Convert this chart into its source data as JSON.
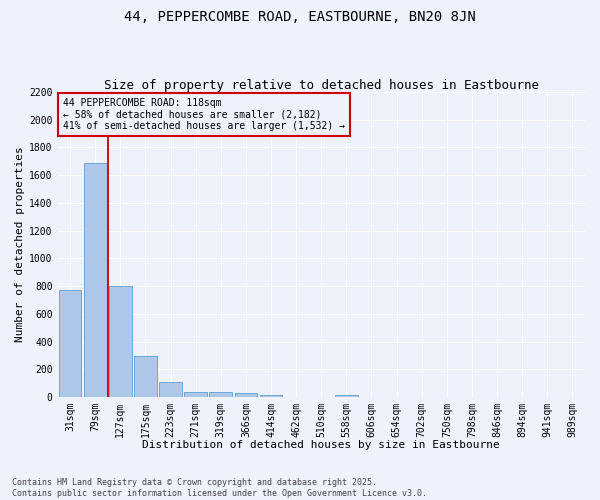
{
  "title": "44, PEPPERCOMBE ROAD, EASTBOURNE, BN20 8JN",
  "subtitle": "Size of property relative to detached houses in Eastbourne",
  "xlabel": "Distribution of detached houses by size in Eastbourne",
  "ylabel": "Number of detached properties",
  "categories": [
    "31sqm",
    "79sqm",
    "127sqm",
    "175sqm",
    "223sqm",
    "271sqm",
    "319sqm",
    "366sqm",
    "414sqm",
    "462sqm",
    "510sqm",
    "558sqm",
    "606sqm",
    "654sqm",
    "702sqm",
    "750sqm",
    "798sqm",
    "846sqm",
    "894sqm",
    "941sqm",
    "989sqm"
  ],
  "values": [
    770,
    1690,
    800,
    300,
    110,
    40,
    35,
    30,
    18,
    0,
    0,
    18,
    0,
    0,
    0,
    0,
    0,
    0,
    0,
    0,
    0
  ],
  "bar_color": "#aec6e8",
  "bar_edge_color": "#5a9fd4",
  "background_color": "#eef2fb",
  "grid_color": "#ffffff",
  "vline_x_index": 1.5,
  "vline_color": "#cc0000",
  "annotation_text": "44 PEPPERCOMBE ROAD: 118sqm\n← 58% of detached houses are smaller (2,182)\n41% of semi-detached houses are larger (1,532) →",
  "annotation_box_color": "#cc0000",
  "ylim": [
    0,
    2200
  ],
  "yticks": [
    0,
    200,
    400,
    600,
    800,
    1000,
    1200,
    1400,
    1600,
    1800,
    2000,
    2200
  ],
  "footer": "Contains HM Land Registry data © Crown copyright and database right 2025.\nContains public sector information licensed under the Open Government Licence v3.0.",
  "title_fontsize": 10,
  "subtitle_fontsize": 9,
  "axis_label_fontsize": 8,
  "tick_fontsize": 7,
  "annotation_fontsize": 7,
  "footer_fontsize": 6
}
